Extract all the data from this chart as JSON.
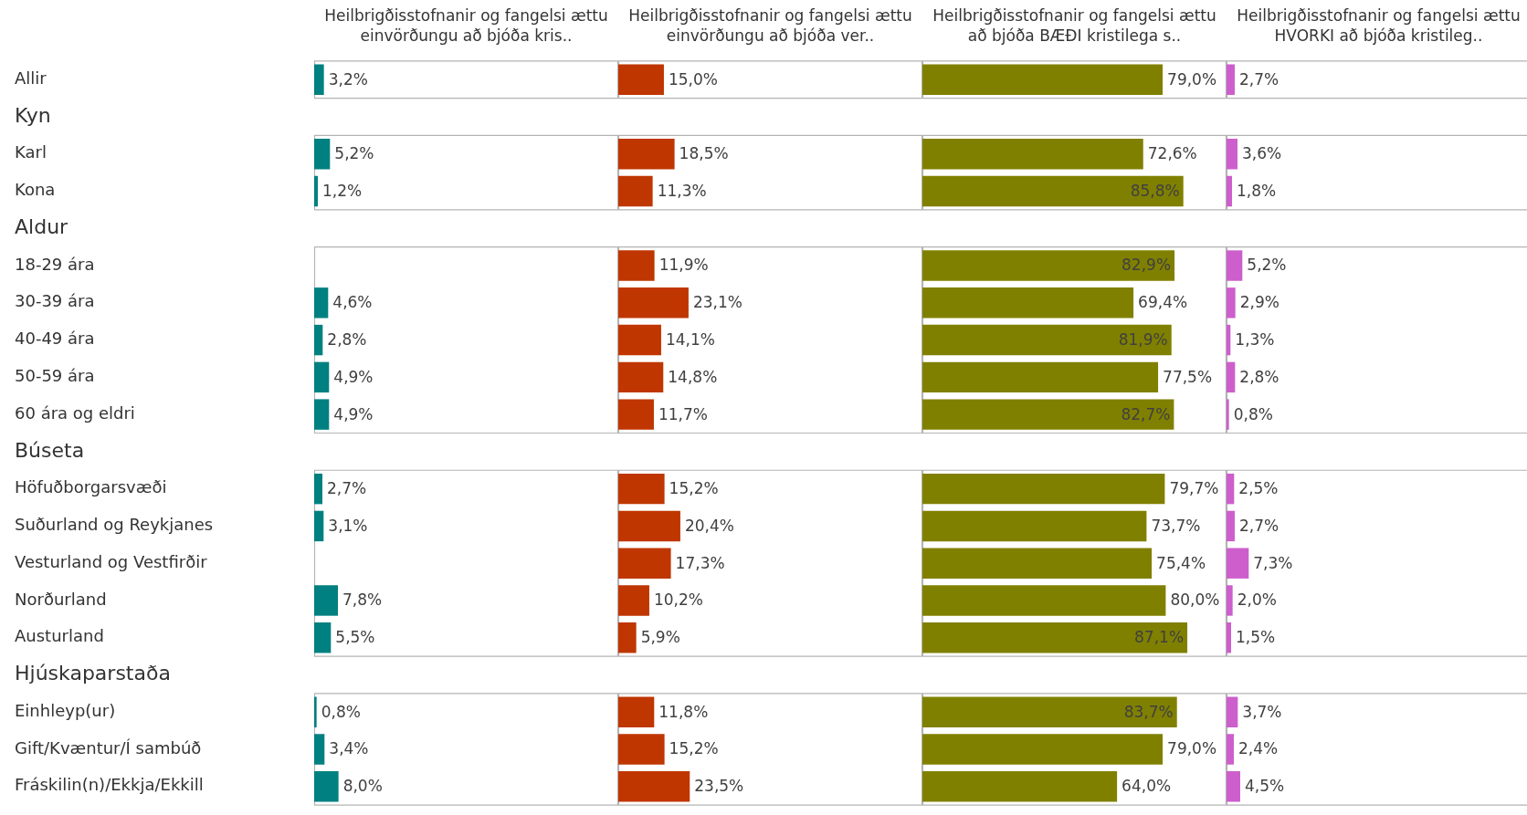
{
  "chart_data": [
    {
      "type": "bar",
      "orientation": "horizontal",
      "title": "Heilbrigðisstofnanir og fangelsi ættu einvörðungu að bjóða kris..",
      "categories": [
        "Allir",
        "Kyn",
        "Karl",
        "Kona",
        "Aldur",
        "18-29 ára",
        "30-39 ára",
        "40-49 ára",
        "50-59 ára",
        "60 ára og eldri",
        "Búseta",
        "Höfuðborgarsvæði",
        "Suðurland og Reykjanes",
        "Vesturland og Vestfirðir",
        "Norðurland",
        "Austurland",
        "Hjúskaparstaða",
        "Einhleyp(ur)",
        "Gift/Kvæntur/Í sambúð",
        "Fráskilin(n)/Ekkja/Ekkill"
      ],
      "color": "#008080",
      "xlim": [
        0,
        100
      ],
      "tick_labels": "y",
      "values": [
        3.2,
        null,
        5.2,
        1.2,
        null,
        null,
        4.6,
        2.8,
        4.9,
        4.9,
        null,
        2.7,
        3.1,
        null,
        7.8,
        5.5,
        null,
        0.8,
        3.4,
        8.0
      ],
      "value_labels": [
        "3,2%",
        null,
        "5,2%",
        "1,2%",
        null,
        null,
        "4,6%",
        "2,8%",
        "4,9%",
        "4,9%",
        null,
        "2,7%",
        "3,1%",
        null,
        "7,8%",
        "5,5%",
        null,
        "0,8%",
        "3,4%",
        "8,0%"
      ]
    },
    {
      "type": "bar",
      "orientation": "horizontal",
      "title": "Heilbrigðisstofnanir og fangelsi ættu einvörðungu að bjóða ver..",
      "color": "#bf3600",
      "xlim": [
        0,
        100
      ],
      "tick_labels": false,
      "values": [
        15.0,
        null,
        18.5,
        11.3,
        null,
        11.9,
        23.1,
        14.1,
        14.8,
        11.7,
        null,
        15.2,
        20.4,
        17.3,
        10.2,
        5.9,
        null,
        11.8,
        15.2,
        23.5
      ],
      "value_labels": [
        "15,0%",
        null,
        "18,5%",
        "11,3%",
        null,
        "11,9%",
        "23,1%",
        "14,1%",
        "14,8%",
        "11,7%",
        null,
        "15,2%",
        "20,4%",
        "17,3%",
        "10,2%",
        "5,9%",
        null,
        "11,8%",
        "15,2%",
        "23,5%"
      ]
    },
    {
      "type": "bar",
      "orientation": "horizontal",
      "title": "Heilbrigðisstofnanir og fangelsi ættu að bjóða BÆÐI kristilega s..",
      "color": "#808000",
      "xlim": [
        0,
        100
      ],
      "tick_labels": false,
      "values": [
        79.0,
        null,
        72.6,
        85.8,
        null,
        82.9,
        69.4,
        81.9,
        77.5,
        82.7,
        null,
        79.7,
        73.7,
        75.4,
        80.0,
        87.1,
        null,
        83.7,
        79.0,
        64.0
      ],
      "value_labels": [
        "79,0%",
        null,
        "72,6%",
        "85,8%",
        null,
        "82,9%",
        "69,4%",
        "81,9%",
        "77,5%",
        "82,7%",
        null,
        "79,7%",
        "73,7%",
        "75,4%",
        "80,0%",
        "87,1%",
        null,
        "83,7%",
        "79,0%",
        "64,0%"
      ]
    },
    {
      "type": "bar",
      "orientation": "horizontal",
      "title": "Heilbrigðisstofnanir og fangelsi ættu HVORKI að bjóða kristileg..",
      "color": "#cc5fcc",
      "xlim": [
        0,
        100
      ],
      "tick_labels": false,
      "values": [
        2.7,
        null,
        3.6,
        1.8,
        null,
        5.2,
        2.9,
        1.3,
        2.8,
        0.8,
        null,
        2.5,
        2.7,
        7.3,
        2.0,
        1.5,
        null,
        3.7,
        2.4,
        4.5
      ],
      "value_labels": [
        "2,7%",
        null,
        "3,6%",
        "1,8%",
        null,
        "5,2%",
        "2,9%",
        "1,3%",
        "2,8%",
        "0,8%",
        null,
        "2,5%",
        "2,7%",
        "7,3%",
        "2,0%",
        "1,5%",
        null,
        "3,7%",
        "2,4%",
        "4,5%"
      ]
    }
  ]
}
